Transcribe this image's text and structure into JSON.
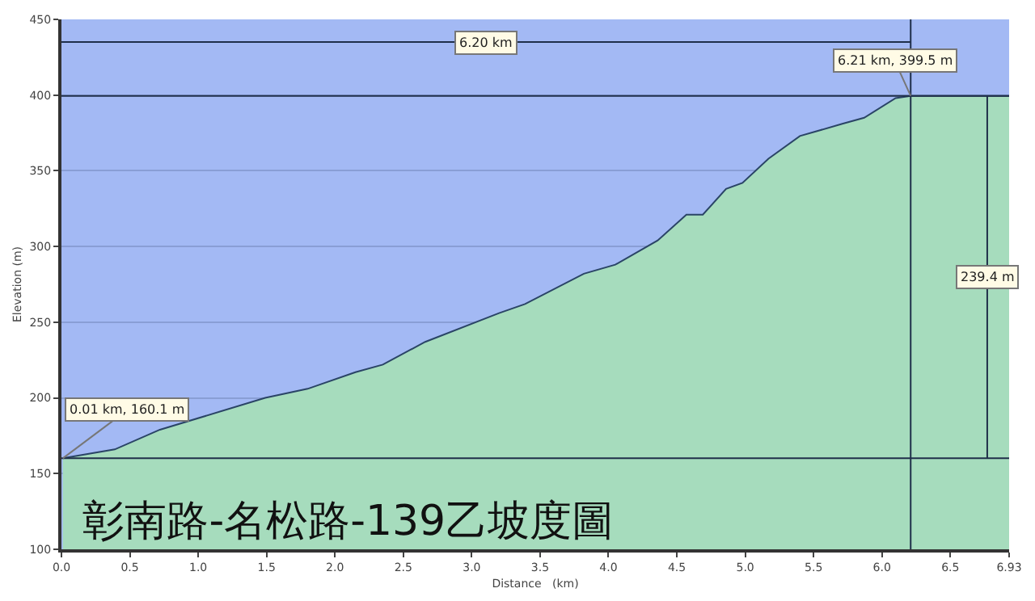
{
  "chart_data": {
    "type": "area",
    "title": "彰南路-名松路-139乙坡度圖",
    "xlabel": "Distance   (km)",
    "ylabel": "Elevation (m)",
    "x": [
      0.01,
      0.39,
      0.72,
      1.49,
      1.8,
      2.15,
      2.35,
      2.66,
      3.2,
      3.39,
      3.82,
      4.05,
      4.36,
      4.57,
      4.69,
      4.86,
      4.98,
      5.17,
      5.4,
      5.71,
      5.87,
      6.1,
      6.21,
      6.93
    ],
    "series": [
      {
        "color": "#a6dcbd",
        "values": [
          160.1,
          166,
          179,
          200,
          206,
          217,
          222,
          237,
          256,
          262,
          282,
          288,
          304,
          321,
          321,
          338,
          342,
          358,
          373,
          381,
          385,
          398,
          399.5,
          399.5
        ]
      },
      {
        "type": "line",
        "color": "#1f2f4a",
        "x": [
          0,
          6.21
        ],
        "values": [
          435,
          435
        ]
      },
      {
        "type": "line",
        "color": "#1f2f4a",
        "x": [
          6.77,
          6.77
        ],
        "values": [
          160.1,
          399.5
        ]
      }
    ],
    "xlim": [
      0,
      6.93
    ],
    "ylim": [
      100,
      450
    ],
    "xticks": [
      {
        "value": 0,
        "label": "0.0"
      },
      0.5,
      {
        "value": 1,
        "label": "1.0"
      },
      1.5,
      {
        "value": 2,
        "label": "2.0"
      },
      2.5,
      {
        "value": 3,
        "label": "3.0"
      },
      3.5,
      {
        "value": 4,
        "label": "4.0"
      },
      4.5,
      {
        "value": 5,
        "label": "5.0"
      },
      5.5,
      {
        "value": 6,
        "label": "6.0"
      },
      6.5,
      6.93
    ],
    "yticks": [
      100,
      150,
      200,
      250,
      300,
      350,
      400,
      450
    ],
    "ref_lines": [
      {
        "axis": "y",
        "value": 399.5,
        "color": "#1f2f4a"
      },
      {
        "axis": "y",
        "value": 160.1,
        "color": "#1f2f4a"
      },
      {
        "axis": "x",
        "value": 6.21,
        "color": "#1f2f4a"
      }
    ],
    "annotations": [
      {
        "text": "0.01 km, 160.1 m",
        "x": 0.01,
        "y": 160.1
      },
      {
        "text": "6.21 km, 399.5 m",
        "x": 6.21,
        "y": 399.5
      },
      {
        "text": "6.20 km",
        "x": 3.1,
        "y": 435
      },
      {
        "text": "239.4 m",
        "x": 6.77,
        "y": 280
      }
    ],
    "grid": "y",
    "legend": false,
    "marker": "none"
  }
}
